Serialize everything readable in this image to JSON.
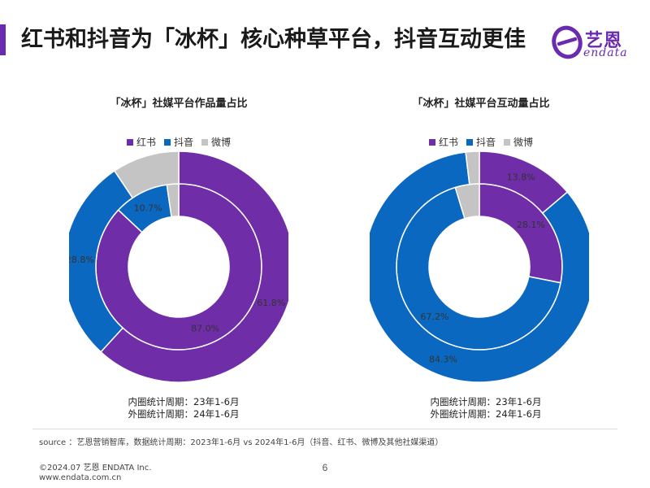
{
  "page": {
    "title": "红书和抖音为「冰杯」核心种草平台，抖音互动更佳",
    "accent_color": "#6a2bb0"
  },
  "logo": {
    "name": "艺恩",
    "sub": "endata",
    "color": "#6a2bb0",
    "icon": "endata-e-logo-icon"
  },
  "colors": {
    "红书": "#6f2da8",
    "抖音": "#0b68c1",
    "微博": "#c4c4c4"
  },
  "chart_data": [
    {
      "type": "donut",
      "title": "「冰杯」社媒平台作品量占比",
      "legend": [
        "红书",
        "抖音",
        "微博"
      ],
      "legend_position": "top",
      "rings": [
        {
          "name": "内圈",
          "period": "23年1-6月",
          "values": [
            87.0,
            10.7,
            2.3
          ]
        },
        {
          "name": "外圈",
          "period": "24年1-6月",
          "values": [
            61.8,
            28.8,
            9.4
          ]
        }
      ],
      "labels": {
        "inner": [
          "87.0%",
          "10.7%",
          ""
        ],
        "outer": [
          "61.8%",
          "28.8%",
          ""
        ]
      },
      "notes": [
        "内圈统计周期：23年1-6月",
        "外圈统计周期：24年1-6月"
      ]
    },
    {
      "type": "donut",
      "title": "「冰杯」社媒平台互动量占比",
      "legend": [
        "红书",
        "抖音",
        "微博"
      ],
      "legend_position": "top",
      "rings": [
        {
          "name": "内圈",
          "period": "23年1-6月",
          "values": [
            28.1,
            67.2,
            4.7
          ]
        },
        {
          "name": "外圈",
          "period": "24年1-6月",
          "values": [
            13.8,
            84.3,
            1.9
          ]
        }
      ],
      "labels": {
        "inner": [
          "28.1%",
          "67.2%",
          ""
        ],
        "outer": [
          "13.8%",
          "84.3%",
          ""
        ]
      },
      "notes": [
        "内圈统计周期：23年1-6月",
        "外圈统计周期：24年1-6月"
      ]
    }
  ],
  "footer": {
    "source": "source ：艺恩营销智库，数据统计周期：2023年1-6月 vs 2024年1-6月（抖音、红书、微博及其他社媒渠道）",
    "copyright": "©2024.07  艺恩 ENDATA Inc.",
    "website": "www.endata.com.cn",
    "page_number": "6"
  }
}
